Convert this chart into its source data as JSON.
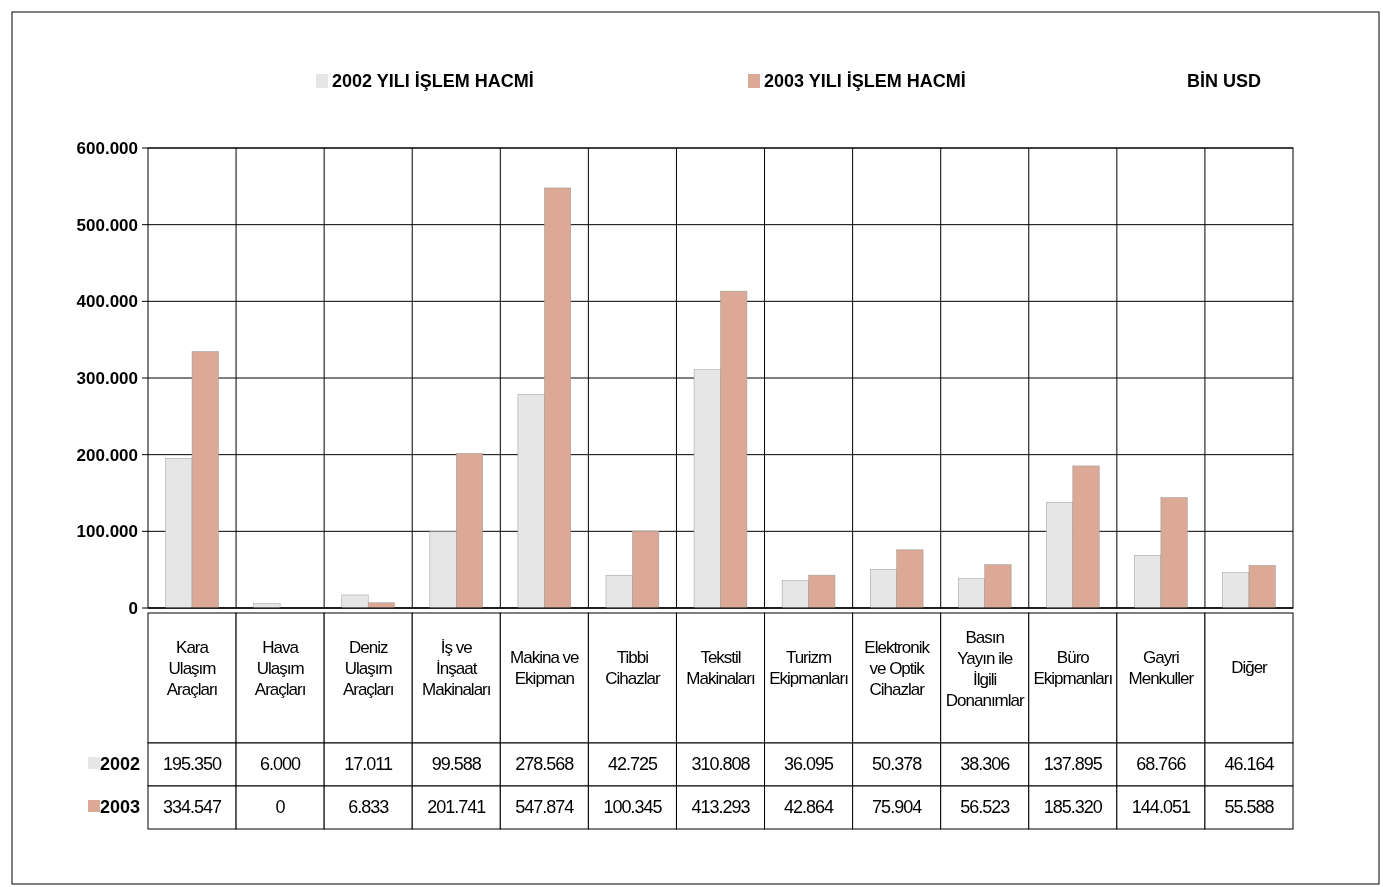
{
  "chart_data": {
    "type": "bar",
    "ylabel": "BİN USD",
    "categories": [
      "Kara Ulaşım Araçları",
      "Hava Ulaşım Araçları",
      "Deniz Ulaşım Araçları",
      "İş ve İnşaat Makinaları",
      "Makina ve Ekipman",
      "Tibbi Cihazlar",
      "Tekstil Makinaları",
      "Turizm Ekipmanları",
      "Elektronik ve Optik Cihazlar",
      "Basın Yayın ile İlgili Donanımlar",
      "Büro Ekipmanları",
      "Gayri Menkuller",
      "Diğer"
    ],
    "series": [
      {
        "name": "2002 YILI İŞLEM HACMİ",
        "color": "#e6e6e6",
        "values": [
          195350,
          6000,
          17011,
          99588,
          278568,
          42725,
          310808,
          36095,
          50378,
          38306,
          137895,
          68766,
          46164
        ],
        "value_labels": [
          "195.350",
          "6.000",
          "17.011",
          "99.588",
          "278.568",
          "42.725",
          "310.808",
          "36.095",
          "50.378",
          "38.306",
          "137.895",
          "68.766",
          "46.164"
        ]
      },
      {
        "name": "2003 YILI İŞLEM HACMİ",
        "color": "#dba995",
        "values": [
          334547,
          0,
          6833,
          201741,
          547874,
          100345,
          413293,
          42864,
          75904,
          56523,
          185320,
          144051,
          55588
        ],
        "value_labels": [
          "334.547",
          "0",
          "6.833",
          "201.741",
          "547.874",
          "100.345",
          "413.293",
          "42.864",
          "75.904",
          "56.523",
          "185.320",
          "144.051",
          "55.588"
        ]
      }
    ],
    "annotations": [
      "2002",
      "2003"
    ],
    "ylim": [
      0,
      600000
    ],
    "yticks": [
      {
        "value": 0,
        "label": "0"
      },
      {
        "value": 100000,
        "label": "100.000"
      },
      {
        "value": 200000,
        "label": "200.000"
      },
      {
        "value": 300000,
        "label": "300.000"
      },
      {
        "value": 400000,
        "label": "400.000"
      },
      {
        "value": 500000,
        "label": "500.000"
      },
      {
        "value": 600000,
        "label": "600.000"
      }
    ],
    "grid": true,
    "legend": "top"
  }
}
